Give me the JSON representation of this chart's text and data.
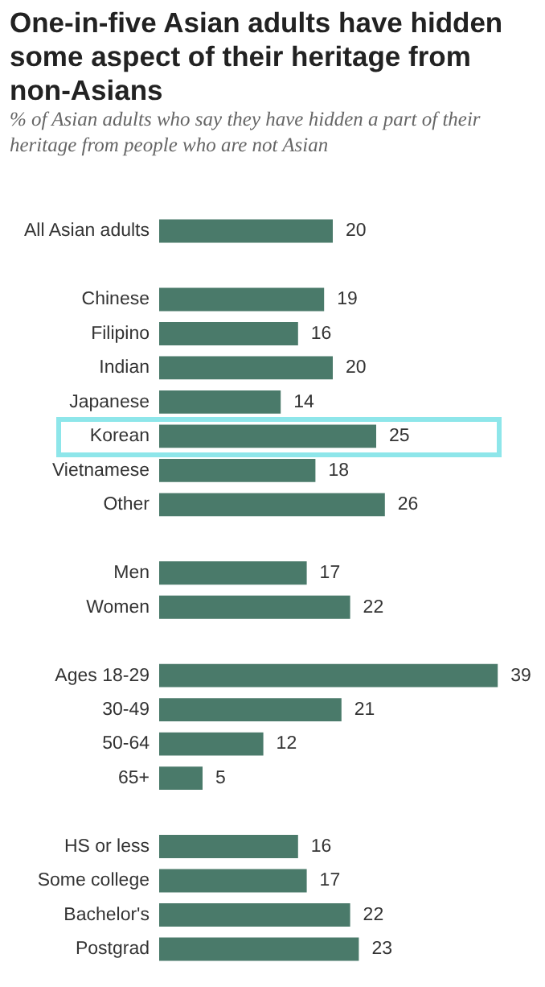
{
  "chart_data": {
    "type": "bar",
    "orientation": "horizontal",
    "title": "One-in-five Asian adults have hidden some aspect of their heritage from non-Asians",
    "subtitle": "% of Asian adults who say they have hidden a part of their heritage from people who are not Asian",
    "categories": [
      "All Asian adults",
      null,
      "Chinese",
      "Filipino",
      "Indian",
      "Japanese",
      "Korean",
      "Vietnamese",
      "Other",
      null,
      "Men",
      "Women",
      null,
      "Ages 18-29",
      "30-49",
      "50-64",
      "65+",
      null,
      "HS or less",
      "Some college",
      "Bachelor's",
      "Postgrad"
    ],
    "values": [
      20,
      null,
      19,
      16,
      20,
      14,
      25,
      18,
      26,
      null,
      17,
      22,
      null,
      39,
      21,
      12,
      5,
      null,
      16,
      17,
      22,
      23
    ],
    "color": "#4a7a6a",
    "data_labels": true,
    "legend": false,
    "tick_labels": "y"
  }
}
